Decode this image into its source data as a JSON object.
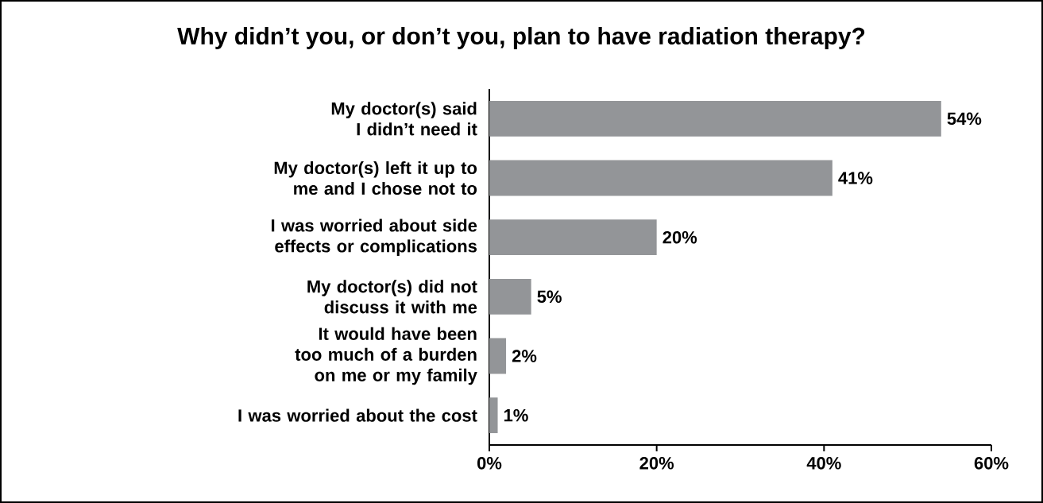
{
  "chart_data": {
    "type": "bar",
    "orientation": "horizontal",
    "title": "Why didn’t you, or don’t you, plan to have radiation therapy?",
    "categories": [
      "My doctor(s) said I didn’t need it",
      "My doctor(s) left it up to me and I chose not to",
      "I was worried about side effects or complications",
      "My doctor(s) did not discuss it with me",
      "It would have been too much of a burden on me or my family",
      "I was worried about the cost"
    ],
    "values": [
      54,
      41,
      20,
      5,
      2,
      1
    ],
    "value_labels": [
      "54%",
      "41%",
      "20%",
      "5%",
      "2%",
      "1%"
    ],
    "color": "#939598",
    "xlim": [
      0,
      60
    ],
    "xticks": [
      {
        "value": 0,
        "label": "0%"
      },
      {
        "value": 20,
        "label": "20%"
      },
      {
        "value": 40,
        "label": "40%"
      },
      {
        "value": 60,
        "label": "60%"
      }
    ]
  }
}
